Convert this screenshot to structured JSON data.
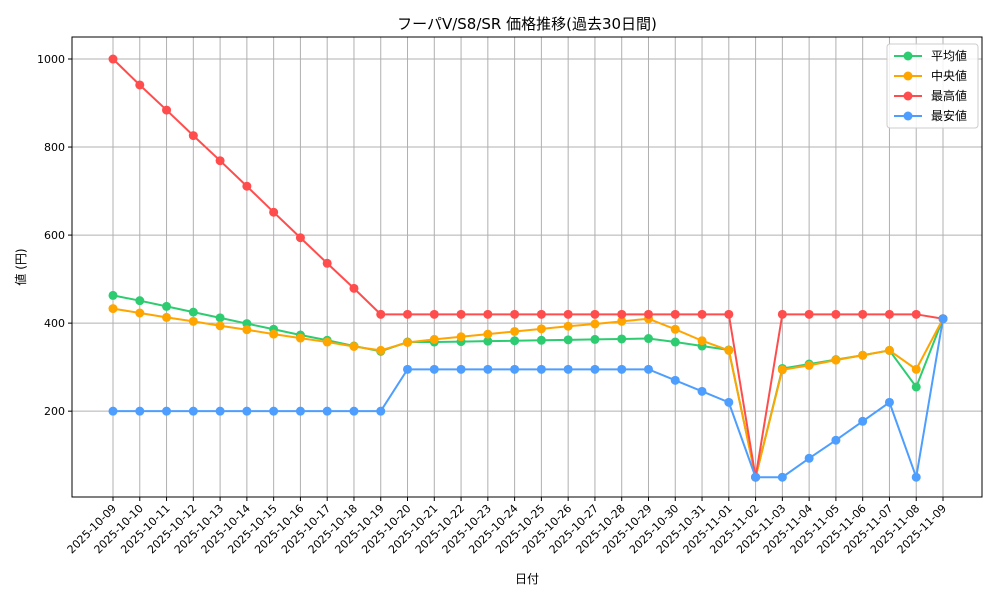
{
  "chart_data": {
    "type": "line",
    "title": "フーパV/S8/SR 価格推移(過去30日間)",
    "xlabel": "日付",
    "ylabel": "値 (円)",
    "ylim": [
      5,
      1050
    ],
    "yticks": [
      200,
      400,
      600,
      800,
      1000
    ],
    "grid": true,
    "legend_position": "top-right",
    "x": [
      "2025-10-09",
      "2025-10-10",
      "2025-10-11",
      "2025-10-12",
      "2025-10-13",
      "2025-10-14",
      "2025-10-15",
      "2025-10-16",
      "2025-10-17",
      "2025-10-18",
      "2025-10-19",
      "2025-10-20",
      "2025-10-21",
      "2025-10-22",
      "2025-10-23",
      "2025-10-24",
      "2025-10-25",
      "2025-10-26",
      "2025-10-27",
      "2025-10-28",
      "2025-10-29",
      "2025-10-30",
      "2025-10-31",
      "2025-11-01",
      "2025-11-02",
      "2025-11-03",
      "2025-11-04",
      "2025-11-05",
      "2025-11-06",
      "2025-11-07",
      "2025-11-08",
      "2025-11-09"
    ],
    "series": [
      {
        "name": "平均値",
        "color": "#2ecc71",
        "values": [
          463,
          451,
          438,
          425,
          412,
          399,
          386,
          373,
          361,
          348,
          336,
          357,
          357,
          358,
          359,
          360,
          361,
          362,
          363,
          364,
          365,
          357,
          348,
          339,
          50,
          297,
          307,
          317,
          327,
          338,
          255,
          410
        ]
      },
      {
        "name": "中央値",
        "color": "#ffa500",
        "values": [
          433,
          423,
          413,
          404,
          394,
          385,
          375,
          366,
          357,
          347,
          338,
          356,
          363,
          369,
          375,
          381,
          387,
          393,
          398,
          404,
          410,
          386,
          360,
          338,
          50,
          294,
          304,
          316,
          327,
          338,
          295,
          410
        ]
      },
      {
        "name": "最高値",
        "color": "#ff4d4d",
        "values": [
          1000,
          941,
          884,
          826,
          769,
          711,
          652,
          594,
          536,
          479,
          420,
          420,
          420,
          420,
          420,
          420,
          420,
          420,
          420,
          420,
          420,
          420,
          420,
          420,
          50,
          420,
          420,
          420,
          420,
          420,
          420,
          410
        ]
      },
      {
        "name": "最安値",
        "color": "#4d9eff",
        "values": [
          200,
          200,
          200,
          200,
          200,
          200,
          200,
          200,
          200,
          200,
          200,
          295,
          295,
          295,
          295,
          295,
          295,
          295,
          295,
          295,
          295,
          270,
          245,
          220,
          50,
          50,
          93,
          134,
          177,
          220,
          50,
          410
        ]
      }
    ]
  }
}
